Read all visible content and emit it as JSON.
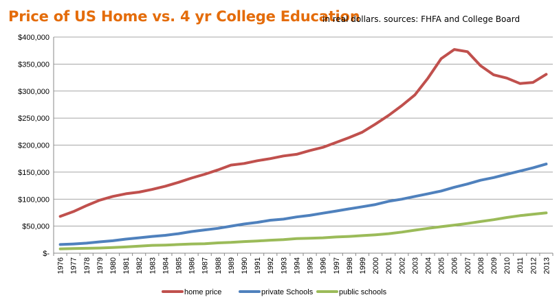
{
  "chart_data": {
    "type": "line",
    "title": "Price of US Home vs. 4 yr College Education",
    "subtitle": "in real dollars. sources:  FHFA and College Board",
    "title_color": "#E46C0A",
    "xlabel": "",
    "ylabel": "",
    "ylim": [
      0,
      400000
    ],
    "y_ticks": [
      {
        "value": 0,
        "label": "$-"
      },
      {
        "value": 50000,
        "label": "$50,000"
      },
      {
        "value": 100000,
        "label": "$100,000"
      },
      {
        "value": 150000,
        "label": "$150,000"
      },
      {
        "value": 200000,
        "label": "$200,000"
      },
      {
        "value": 250000,
        "label": "$250,000"
      },
      {
        "value": 300000,
        "label": "$300,000"
      },
      {
        "value": 350000,
        "label": "$350,000"
      },
      {
        "value": 400000,
        "label": "$400,000"
      }
    ],
    "grid": true,
    "legend_position": "bottom",
    "categories": [
      "1976",
      "1977",
      "1978",
      "1979",
      "1980",
      "1981",
      "1982",
      "1983",
      "1984",
      "1985",
      "1986",
      "1987",
      "1988",
      "1989",
      "1990",
      "1991",
      "1992",
      "1993",
      "1994",
      "1995",
      "1996",
      "1997",
      "1998",
      "1999",
      "2000",
      "2001",
      "2002",
      "2003",
      "2004",
      "2005",
      "2006",
      "2007",
      "2008",
      "2009",
      "2010",
      "2011",
      "2012",
      "2013"
    ],
    "series": [
      {
        "name": "home price",
        "color": "#C0504D",
        "values": [
          68000,
          77000,
          88000,
          98000,
          105000,
          110000,
          113000,
          118000,
          124000,
          131000,
          139000,
          146000,
          154000,
          163000,
          166000,
          171000,
          175000,
          180000,
          183000,
          190000,
          196000,
          205000,
          214000,
          224000,
          239000,
          255000,
          273000,
          293000,
          324000,
          360000,
          377000,
          373000,
          347000,
          330000,
          324000,
          314000,
          316000,
          331000
        ]
      },
      {
        "name": "private Schools",
        "color": "#4F81BD",
        "values": [
          16000,
          17000,
          18500,
          21000,
          23000,
          26000,
          28500,
          31000,
          33000,
          36000,
          40000,
          43000,
          46000,
          50000,
          54000,
          57000,
          61000,
          63000,
          67000,
          70000,
          74000,
          78000,
          82000,
          86000,
          90000,
          96000,
          100000,
          105000,
          110000,
          115000,
          122000,
          128000,
          135000,
          140000,
          146000,
          152000,
          158000,
          165000
        ]
      },
      {
        "name": "public schools",
        "color": "#9BBB59",
        "values": [
          8000,
          8500,
          9000,
          9500,
          10500,
          11500,
          13000,
          14500,
          15000,
          16000,
          17000,
          17500,
          19000,
          20000,
          21500,
          22500,
          24000,
          25000,
          27000,
          27500,
          28500,
          30000,
          31000,
          32500,
          34000,
          36000,
          39000,
          42500,
          46000,
          49000,
          52000,
          55000,
          58500,
          62000,
          66000,
          69500,
          72000,
          74500
        ]
      }
    ]
  }
}
